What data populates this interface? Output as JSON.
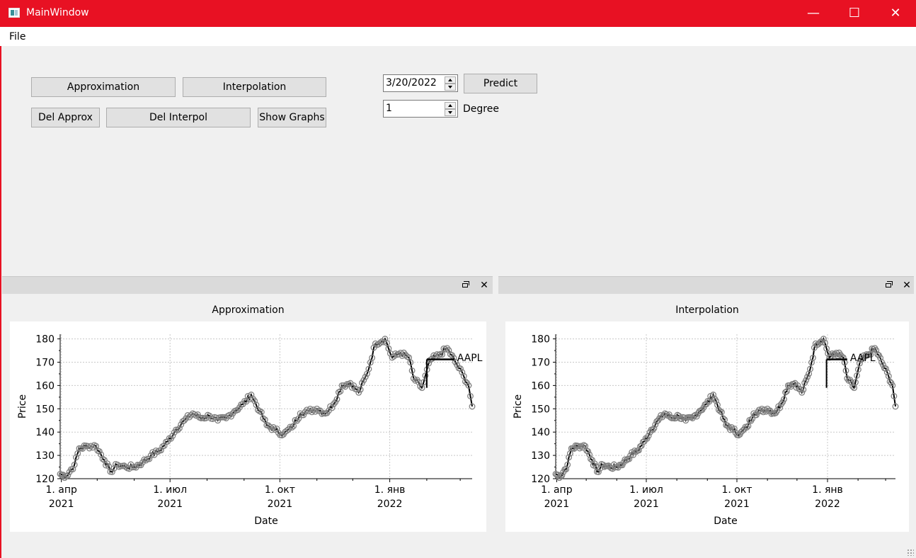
{
  "window": {
    "title": "MainWindow",
    "minimize_glyph": "—",
    "maximize_glyph": "☐",
    "close_glyph": "✕"
  },
  "menu": {
    "file": "File"
  },
  "controls": {
    "approximation_btn": "Approximation",
    "interpolation_btn": "Interpolation",
    "del_approx_btn": "Del Approx",
    "del_interpol_btn": "Del Interpol",
    "show_graphs_btn": "Show Graphs",
    "date_value": "3/20/2022",
    "predict_btn": "Predict",
    "degree_value": "1",
    "degree_label": "Degree"
  },
  "docks": {
    "close_glyph": "✕"
  },
  "colors": {
    "titlebar": "#e81123",
    "series_line": "#000000",
    "series_marker": "#808080"
  },
  "chart_data": [
    {
      "type": "line",
      "title": "Approximation",
      "xlabel": "Date",
      "ylabel": "Price",
      "ylim": [
        120,
        182
      ],
      "yticks": [
        120,
        130,
        140,
        150,
        160,
        170,
        180
      ],
      "xlim": [
        "2021-03-31",
        "2022-03-11"
      ],
      "xticks": [
        {
          "date": "2021-04-01",
          "line1": "1. апр",
          "line2": "2021"
        },
        {
          "date": "2021-07-01",
          "line1": "1. июл",
          "line2": "2021"
        },
        {
          "date": "2021-10-01",
          "line1": "1. окт",
          "line2": "2021"
        },
        {
          "date": "2022-01-01",
          "line1": "1. янв",
          "line2": "2022"
        }
      ],
      "legend": "AAPL",
      "grid": true,
      "series": [
        {
          "name": "AAPL",
          "dates": [
            "2021-03-31",
            "2021-04-05",
            "2021-04-12",
            "2021-04-16",
            "2021-04-23",
            "2021-04-30",
            "2021-05-07",
            "2021-05-12",
            "2021-05-18",
            "2021-05-25",
            "2021-06-01",
            "2021-06-08",
            "2021-06-15",
            "2021-06-22",
            "2021-06-29",
            "2021-07-06",
            "2021-07-13",
            "2021-07-20",
            "2021-07-27",
            "2021-08-03",
            "2021-08-10",
            "2021-08-17",
            "2021-08-24",
            "2021-08-31",
            "2021-09-07",
            "2021-09-14",
            "2021-09-20",
            "2021-09-27",
            "2021-10-04",
            "2021-10-11",
            "2021-10-18",
            "2021-10-25",
            "2021-11-01",
            "2021-11-08",
            "2021-11-15",
            "2021-11-22",
            "2021-11-29",
            "2021-12-06",
            "2021-12-13",
            "2021-12-20",
            "2021-12-28",
            "2022-01-03",
            "2022-01-10",
            "2022-01-17",
            "2022-01-21",
            "2022-01-28",
            "2022-02-04",
            "2022-02-11",
            "2022-02-18",
            "2022-02-25",
            "2022-03-04",
            "2022-03-08",
            "2022-03-11"
          ],
          "values": [
            122,
            121,
            126,
            133,
            134,
            134,
            128,
            123,
            126,
            125,
            125,
            127,
            130,
            132,
            136,
            141,
            145,
            148,
            146,
            147,
            145,
            146,
            149,
            152,
            156,
            149,
            143,
            141,
            139,
            142,
            148,
            149,
            150,
            148,
            152,
            160,
            161,
            157,
            165,
            178,
            180,
            172,
            174,
            172,
            163,
            159,
            171,
            173,
            176,
            170,
            164,
            160,
            151
          ]
        }
      ],
      "flat_segment": {
        "from": "2022-02-01",
        "to": "2022-02-24",
        "value": 171.2
      }
    },
    {
      "type": "line",
      "title": "Interpolation",
      "xlabel": "Date",
      "ylabel": "Price",
      "ylim": [
        120,
        182
      ],
      "yticks": [
        120,
        130,
        140,
        150,
        160,
        170,
        180
      ],
      "xlim": [
        "2021-03-31",
        "2022-03-11"
      ],
      "xticks": [
        {
          "date": "2021-04-01",
          "line1": "1. апр",
          "line2": "2021"
        },
        {
          "date": "2021-07-01",
          "line1": "1. июл",
          "line2": "2021"
        },
        {
          "date": "2021-10-01",
          "line1": "1. окт",
          "line2": "2021"
        },
        {
          "date": "2022-01-01",
          "line1": "1. янв",
          "line2": "2022"
        }
      ],
      "legend": "AAPL",
      "grid": true,
      "series": [
        {
          "name": "AAPL",
          "dates": [
            "2021-03-31",
            "2021-04-05",
            "2021-04-12",
            "2021-04-16",
            "2021-04-23",
            "2021-04-30",
            "2021-05-07",
            "2021-05-12",
            "2021-05-18",
            "2021-05-25",
            "2021-06-01",
            "2021-06-08",
            "2021-06-15",
            "2021-06-22",
            "2021-06-29",
            "2021-07-06",
            "2021-07-13",
            "2021-07-20",
            "2021-07-27",
            "2021-08-03",
            "2021-08-10",
            "2021-08-17",
            "2021-08-24",
            "2021-08-31",
            "2021-09-07",
            "2021-09-14",
            "2021-09-20",
            "2021-09-27",
            "2021-10-04",
            "2021-10-11",
            "2021-10-18",
            "2021-10-25",
            "2021-11-01",
            "2021-11-08",
            "2021-11-15",
            "2021-11-22",
            "2021-11-29",
            "2021-12-06",
            "2021-12-13",
            "2021-12-20",
            "2021-12-28",
            "2022-01-03",
            "2022-01-10",
            "2022-01-17",
            "2022-01-21",
            "2022-01-28",
            "2022-02-04",
            "2022-02-11",
            "2022-02-18",
            "2022-02-25",
            "2022-03-04",
            "2022-03-08",
            "2022-03-11"
          ],
          "values": [
            122,
            121,
            126,
            133,
            134,
            134,
            128,
            123,
            126,
            125,
            125,
            127,
            130,
            132,
            136,
            141,
            145,
            148,
            146,
            147,
            145,
            146,
            149,
            152,
            156,
            149,
            143,
            141,
            139,
            142,
            148,
            149,
            150,
            148,
            152,
            160,
            161,
            157,
            165,
            178,
            180,
            172,
            174,
            172,
            163,
            159,
            171,
            173,
            176,
            170,
            164,
            160,
            151
          ]
        }
      ],
      "flat_segment": {
        "from": "2021-12-31",
        "to": "2022-01-21",
        "value": 171.2
      }
    }
  ]
}
